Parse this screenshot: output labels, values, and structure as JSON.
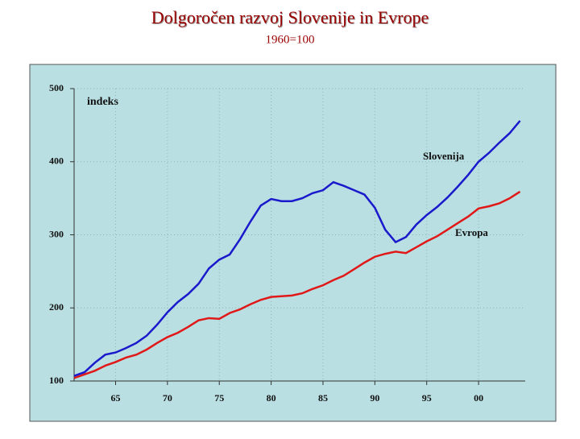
{
  "chart_data": {
    "type": "line",
    "title": "Dolgoročen razvoj Slovenije in Evrope",
    "subtitle": "1960=100",
    "y_label": "indeks",
    "x": [
      1961,
      1962,
      1963,
      1964,
      1965,
      1966,
      1967,
      1968,
      1969,
      1970,
      1971,
      1972,
      1973,
      1974,
      1975,
      1976,
      1977,
      1978,
      1979,
      1980,
      1981,
      1982,
      1983,
      1984,
      1985,
      1986,
      1987,
      1988,
      1989,
      1990,
      1991,
      1992,
      1993,
      1994,
      1995,
      1996,
      1997,
      1998,
      1999,
      2000,
      2001,
      2002,
      2003,
      2004
    ],
    "series": [
      {
        "name": "Slovenija",
        "color": "#1a1acc",
        "values": [
          107,
          112,
          125,
          136,
          139,
          145,
          152,
          162,
          177,
          194,
          208,
          219,
          233,
          254,
          266,
          273,
          294,
          318,
          340,
          349,
          346,
          346,
          350,
          357,
          361,
          372,
          367,
          361,
          355,
          337,
          307,
          290,
          297,
          314,
          327,
          338,
          351,
          366,
          382,
          400,
          412,
          426,
          439,
          456
        ]
      },
      {
        "name": "Evropa",
        "color": "#e01818",
        "values": [
          104,
          109,
          114,
          121,
          126,
          132,
          136,
          143,
          152,
          160,
          166,
          174,
          183,
          186,
          185,
          193,
          198,
          205,
          211,
          215,
          216,
          217,
          220,
          226,
          231,
          238,
          244,
          253,
          262,
          270,
          274,
          277,
          275,
          283,
          291,
          298,
          307,
          316,
          325,
          336,
          339,
          343,
          350,
          359
        ]
      }
    ],
    "xlim": [
      1961,
      2004.5
    ],
    "xticks": [
      {
        "value": 1965,
        "label": "65"
      },
      {
        "value": 1970,
        "label": "70"
      },
      {
        "value": 1975,
        "label": "75"
      },
      {
        "value": 1980,
        "label": "80"
      },
      {
        "value": 1985,
        "label": "85"
      },
      {
        "value": 1990,
        "label": "90"
      },
      {
        "value": 1995,
        "label": "95"
      },
      {
        "value": 2000,
        "label": "00"
      }
    ],
    "ylim": [
      100,
      500
    ],
    "yticks": [
      100,
      200,
      300,
      400,
      500
    ],
    "grid": true
  }
}
